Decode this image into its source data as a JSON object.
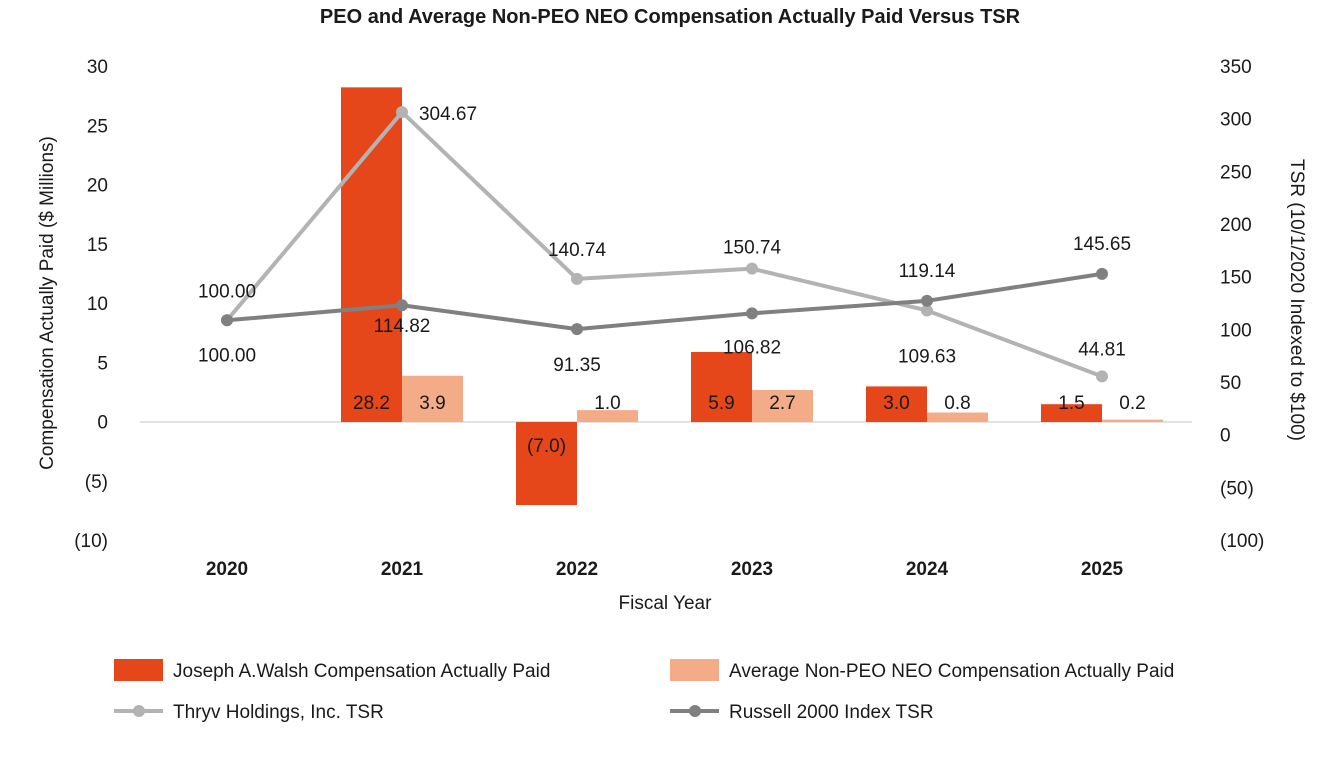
{
  "chart_data": {
    "type": "bar",
    "title": "PEO and Average Non-PEO NEO Compensation Actually Paid Versus TSR",
    "xlabel": "Fiscal Year",
    "ylabel": "Compensation Actually Paid ($ Millions)",
    "y2label": "TSR (10/1/2020 Indexed to $100)",
    "categories": [
      "2020",
      "2021",
      "2022",
      "2023",
      "2024",
      "2025"
    ],
    "ylim": [
      -10,
      30
    ],
    "y2lim": [
      -100,
      350
    ],
    "yticks": [
      "30",
      "25",
      "20",
      "15",
      "10",
      "5",
      "0",
      "(5)",
      "(10)"
    ],
    "y2ticks": [
      "350",
      "300",
      "250",
      "200",
      "150",
      "100",
      "50",
      "0",
      "(50)",
      "(100)"
    ],
    "bar_series": [
      {
        "name": "Joseph A.Walsh Compensation Actually Paid",
        "color": "#e5461a",
        "values": [
          null,
          28.2,
          -7.0,
          5.9,
          3.0,
          1.5
        ],
        "labels": [
          "",
          "28.2",
          "(7.0)",
          "5.9",
          "3.0",
          "1.5"
        ]
      },
      {
        "name": "Average Non-PEO NEO Compensation Actually Paid",
        "color": "#f4ac88",
        "values": [
          null,
          3.9,
          1.0,
          2.7,
          0.8,
          0.2
        ],
        "labels": [
          "",
          "3.9",
          "1.0",
          "2.7",
          "0.8",
          "0.2"
        ]
      }
    ],
    "line_series": [
      {
        "name": "Thryv Holdings, Inc. TSR",
        "color": "#b3b3b3",
        "values": [
          100.0,
          304.67,
          140.74,
          150.74,
          109.63,
          44.81
        ],
        "labels": [
          "100.00",
          "304.67",
          "140.74",
          "150.74",
          "109.63",
          "44.81"
        ]
      },
      {
        "name": "Russell 2000 Index TSR",
        "color": "#808080",
        "values": [
          100.0,
          114.82,
          91.35,
          106.82,
          119.14,
          145.65
        ],
        "labels": [
          "100.00",
          "114.82",
          "91.35",
          "106.82",
          "119.14",
          "145.65"
        ]
      }
    ],
    "grid": false,
    "legend_position": "bottom"
  }
}
